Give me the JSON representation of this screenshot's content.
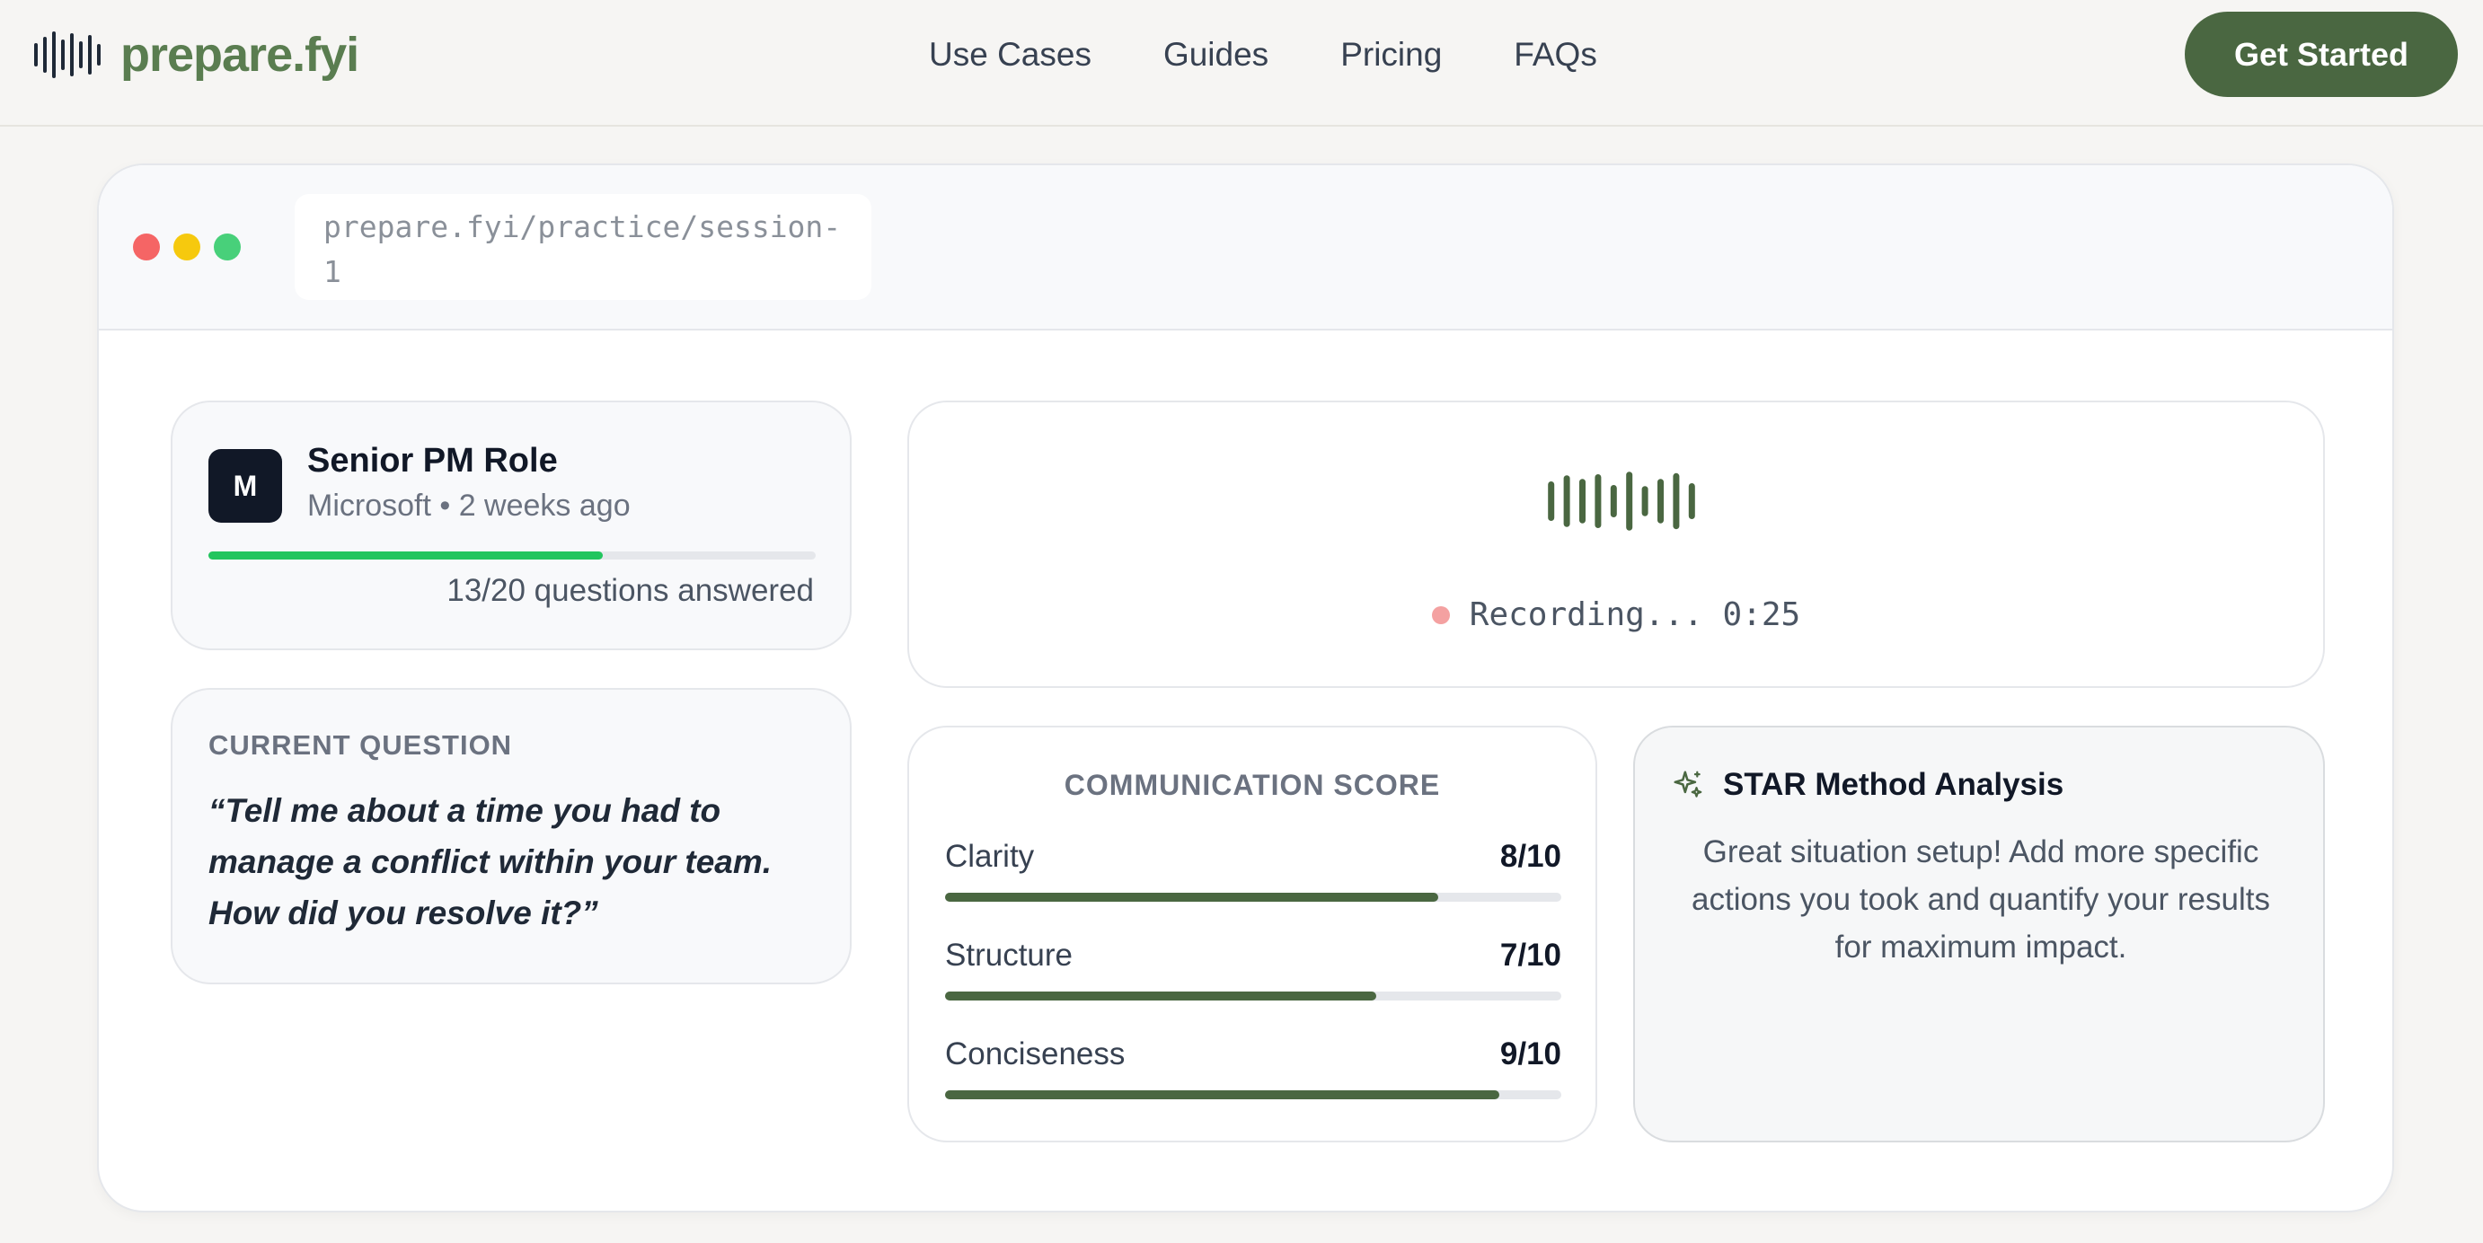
{
  "nav": {
    "logo_text": "prepare.fyi",
    "links": [
      "Use Cases",
      "Guides",
      "Pricing",
      "FAQs"
    ],
    "cta_label": "Get Started"
  },
  "browser": {
    "url": "prepare.fyi/practice/session-1"
  },
  "session": {
    "avatar_letter": "M",
    "role": "Senior PM Role",
    "meta": "Microsoft • 2 weeks ago",
    "answered": "13/20 questions answered",
    "progress_fraction": 0.65,
    "progress_color": "#22c55e"
  },
  "question": {
    "label": "CURRENT QUESTION",
    "text": "“Tell me about a time you had to manage a conflict within your team. How did you resolve it?”"
  },
  "recording": {
    "status": "Recording... 0:25",
    "wave_levels": [
      0.55,
      0.72,
      0.62,
      0.75,
      0.45,
      0.82,
      0.42,
      0.62,
      0.78,
      0.5
    ],
    "accent": "#4a6741",
    "dot_color": "#f4a1a1"
  },
  "score": {
    "title": "COMMUNICATION SCORE",
    "metrics": [
      {
        "name": "Clarity",
        "value": "8/10",
        "fraction": 0.8
      },
      {
        "name": "Structure",
        "value": "7/10",
        "fraction": 0.7
      },
      {
        "name": "Conciseness",
        "value": "9/10",
        "fraction": 0.9
      }
    ]
  },
  "star": {
    "icon": "sparkles-icon",
    "title": "STAR Method Analysis",
    "body": "Great situation setup! Add more specific actions you took and quantify your results for maximum impact."
  }
}
